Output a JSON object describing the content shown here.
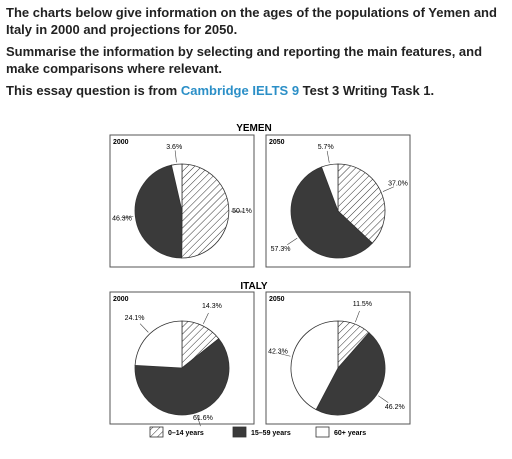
{
  "intro": {
    "line1": "The charts below give information on the ages of the populations of Yemen and Italy in 2000 and projections for 2050.",
    "line2": "Summarise the information by selecting and reporting the main features, and make comparisons where relevant.",
    "source_prefix": "This essay question is from ",
    "source_link": "Cambridge IELTS 9",
    "source_suffix": " Test 3 Writing Task 1."
  },
  "colors": {
    "link": "#2b8fc7",
    "dark_slice": "#3a3a3a",
    "light_slice": "#ffffff",
    "hatch": "#333333"
  },
  "chart_data": [
    {
      "type": "pie",
      "country": "YEMEN",
      "year": "2000",
      "slices": [
        {
          "name": "0–14 years",
          "value": 50.1,
          "label": "50.1%"
        },
        {
          "name": "15–59 years",
          "value": 46.3,
          "label": "46.3%"
        },
        {
          "name": "60+ years",
          "value": 3.6,
          "label": "3.6%"
        }
      ]
    },
    {
      "type": "pie",
      "country": "YEMEN",
      "year": "2050",
      "slices": [
        {
          "name": "0–14 years",
          "value": 37.0,
          "label": "37.0%"
        },
        {
          "name": "15–59 years",
          "value": 57.3,
          "label": "57.3%"
        },
        {
          "name": "60+ years",
          "value": 5.7,
          "label": "5.7%"
        }
      ]
    },
    {
      "type": "pie",
      "country": "ITALY",
      "year": "2000",
      "slices": [
        {
          "name": "0–14 years",
          "value": 14.3,
          "label": "14.3%"
        },
        {
          "name": "15–59 years",
          "value": 61.6,
          "label": "61.6%"
        },
        {
          "name": "60+ years",
          "value": 24.1,
          "label": "24.1%"
        }
      ]
    },
    {
      "type": "pie",
      "country": "ITALY",
      "year": "2050",
      "slices": [
        {
          "name": "0–14 years",
          "value": 11.5,
          "label": "11.5%"
        },
        {
          "name": "15–59 years",
          "value": 46.2,
          "label": "46.2%"
        },
        {
          "name": "60+ years",
          "value": 42.3,
          "label": "42.3%"
        }
      ]
    }
  ],
  "legend": [
    "0–14 years",
    "15–59 years",
    "60+ years"
  ],
  "section_titles": [
    "YEMEN",
    "ITALY"
  ]
}
